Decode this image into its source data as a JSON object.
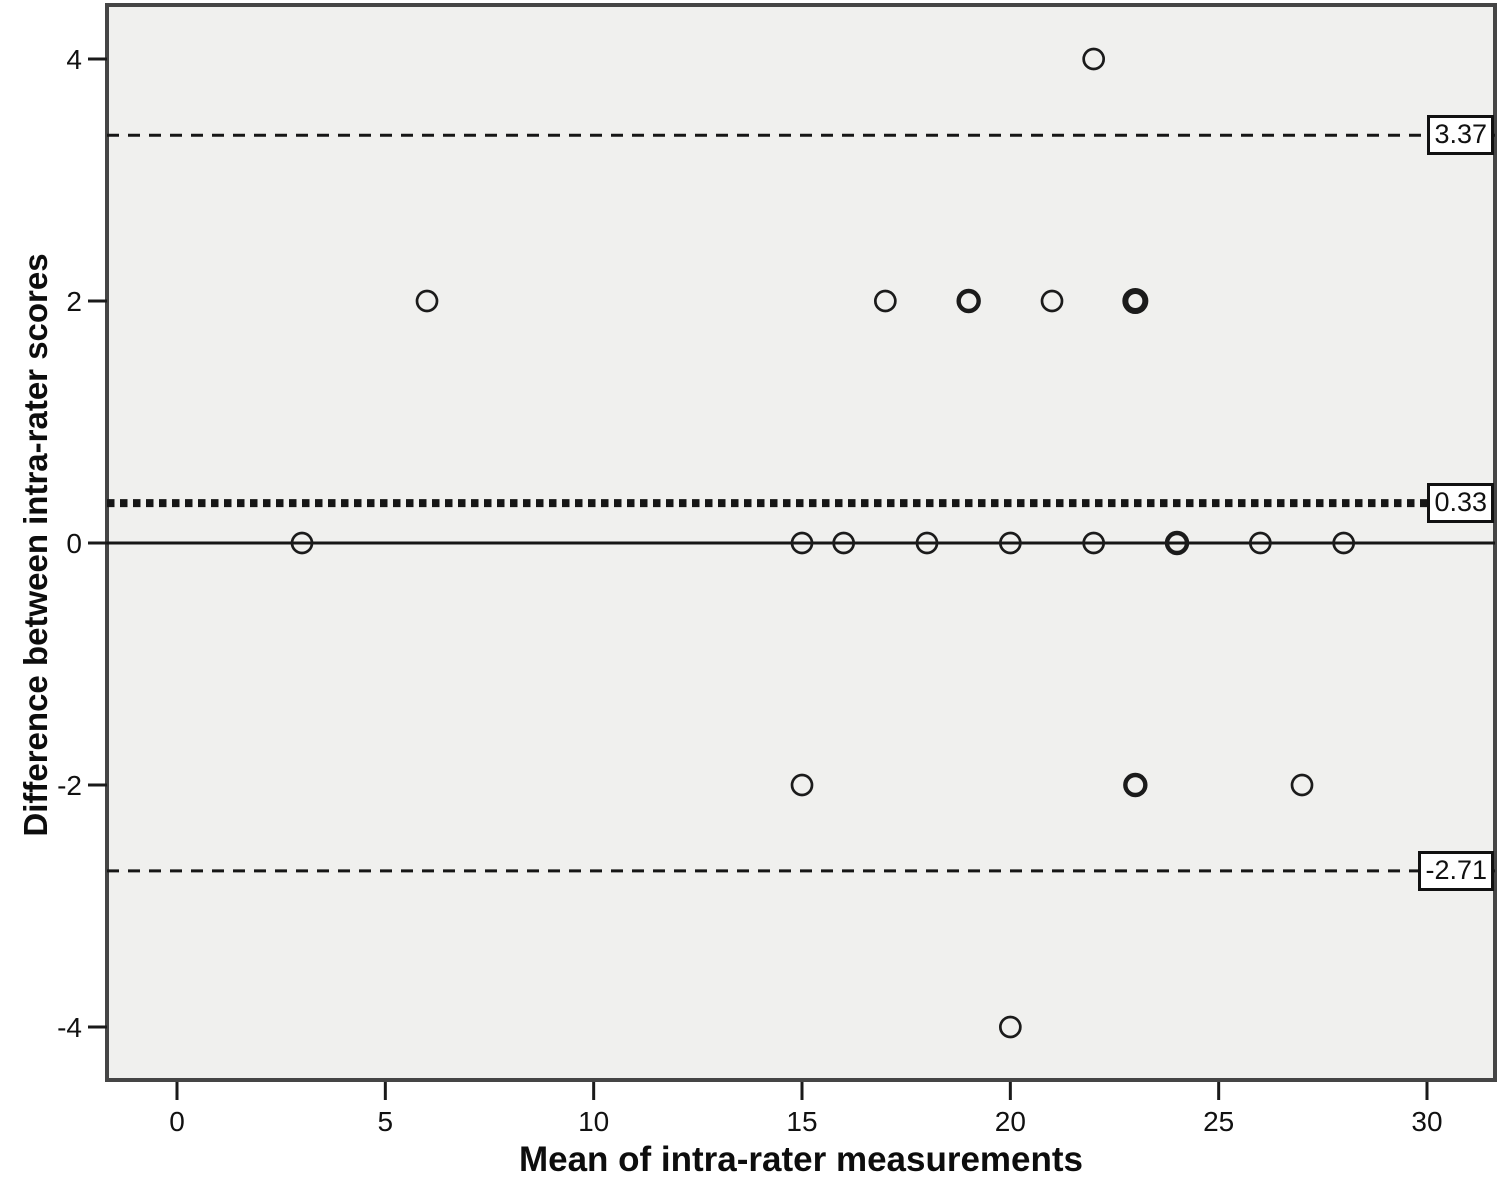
{
  "chart_data": {
    "type": "scatter",
    "title": "",
    "xlabel": "Mean of intra-rater measurements",
    "ylabel": "Difference between intra-rater scores",
    "xlim": [
      -1.7,
      31.6
    ],
    "ylim": [
      -4.45,
      4.45
    ],
    "x_ticks": [
      0,
      5,
      10,
      15,
      20,
      25,
      30
    ],
    "y_ticks": [
      -4,
      -2,
      0,
      2,
      4
    ],
    "grid": false,
    "legend": "none",
    "marker": "open-circle",
    "points": [
      {
        "x": 22,
        "y": 4,
        "overlap": 1
      },
      {
        "x": 6,
        "y": 2,
        "overlap": 1
      },
      {
        "x": 17,
        "y": 2,
        "overlap": 1
      },
      {
        "x": 19,
        "y": 2,
        "overlap": 2
      },
      {
        "x": 21,
        "y": 2,
        "overlap": 1
      },
      {
        "x": 23,
        "y": 2,
        "overlap": 3
      },
      {
        "x": 3,
        "y": 0,
        "overlap": 1
      },
      {
        "x": 15,
        "y": 0,
        "overlap": 1
      },
      {
        "x": 16,
        "y": 0,
        "overlap": 1
      },
      {
        "x": 18,
        "y": 0,
        "overlap": 1
      },
      {
        "x": 20,
        "y": 0,
        "overlap": 1
      },
      {
        "x": 22,
        "y": 0,
        "overlap": 1
      },
      {
        "x": 24,
        "y": 0,
        "overlap": 2
      },
      {
        "x": 26,
        "y": 0,
        "overlap": 1
      },
      {
        "x": 28,
        "y": 0,
        "overlap": 1
      },
      {
        "x": 15,
        "y": -2,
        "overlap": 1
      },
      {
        "x": 23,
        "y": -2,
        "overlap": 2
      },
      {
        "x": 27,
        "y": -2,
        "overlap": 1
      },
      {
        "x": 20,
        "y": -4,
        "overlap": 1
      }
    ],
    "reference_lines": [
      {
        "value": 3.37,
        "label": "3.37",
        "style": "dashed"
      },
      {
        "value": 0.33,
        "label": "0.33",
        "style": "bold_dotted"
      },
      {
        "value": 0,
        "label": "",
        "style": "solid"
      },
      {
        "value": -2.71,
        "label": "-2.71",
        "style": "dashed"
      }
    ],
    "colors": {
      "plot_bg": "#f0f0ee",
      "frame": "#454545",
      "line": "#161616",
      "marker_stroke": "#1b1b1b",
      "label_box_bg": "#ffffff",
      "outer_bg": "#ffffff"
    }
  }
}
